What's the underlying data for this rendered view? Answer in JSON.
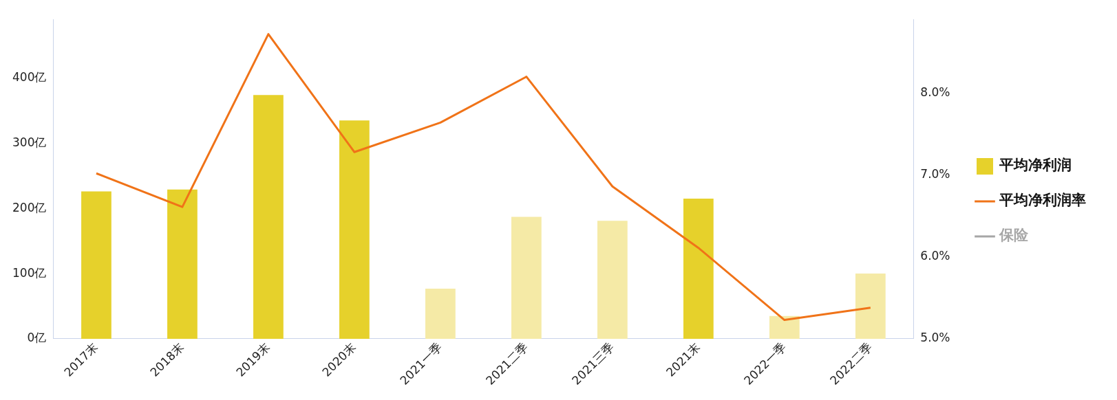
{
  "chart_data": {
    "type": "bar",
    "categories": [
      "2017末",
      "2018末",
      "2019末",
      "2020末",
      "2021一季",
      "2021二季",
      "2021三季",
      "2021末",
      "2022一季",
      "2022二季"
    ],
    "series": [
      {
        "name": "平均净利润",
        "color": "#e6d12b",
        "colors": [
          "#e6d12b",
          "#e6d12b",
          "#e6d12b",
          "#e6d12b",
          "#f5eaa6",
          "#f5eaa6",
          "#f5eaa6",
          "#e6d12b",
          "#f5eaa6",
          "#f5eaa6"
        ],
        "values": [
          226,
          229,
          374,
          335,
          77,
          187,
          181,
          215,
          35,
          100
        ]
      },
      {
        "name": "平均净利润率",
        "type": "line",
        "axis": "y2",
        "color": "#f07318",
        "values": [
          7.02,
          6.61,
          8.72,
          7.28,
          7.64,
          8.2,
          6.86,
          6.11,
          5.23,
          5.38
        ]
      },
      {
        "name": "保险",
        "type": "line",
        "axis": "y2",
        "color": "#a6a6a6",
        "values": [
          null,
          null,
          null,
          null,
          null,
          null,
          null,
          null,
          null,
          null
        ]
      }
    ],
    "ylim": [
      0,
      490
    ],
    "yticks": [
      {
        "value": 0,
        "label": "0亿"
      },
      {
        "value": 100,
        "label": "100亿"
      },
      {
        "value": 200,
        "label": "200亿"
      },
      {
        "value": 300,
        "label": "300亿"
      },
      {
        "value": 400,
        "label": "400亿"
      }
    ],
    "y2lim": [
      5,
      8.9
    ],
    "y2ticks": [
      {
        "value": 5,
        "label": "5.0%"
      },
      {
        "value": 6,
        "label": "6.0%"
      },
      {
        "value": 7,
        "label": "7.0%"
      },
      {
        "value": 8,
        "label": "8.0%"
      }
    ],
    "grid": false,
    "legend": "right",
    "marker": "none",
    "line_style": "solid"
  }
}
